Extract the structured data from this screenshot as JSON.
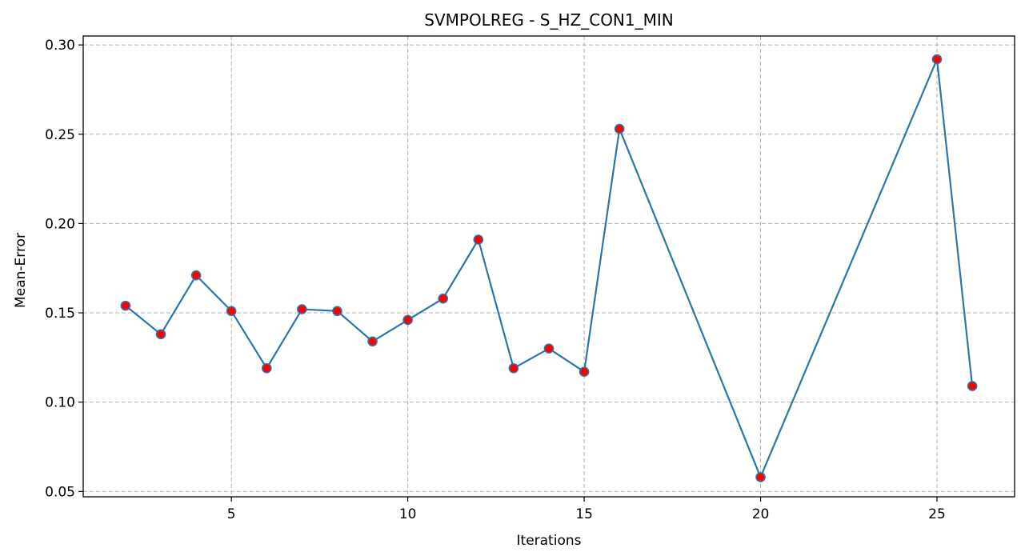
{
  "chart_data": {
    "type": "line",
    "title": "SVMPOLREG - S_HZ_CON1_MIN",
    "xlabel": "Iterations",
    "ylabel": "Mean-Error",
    "xlim": [
      0.8,
      27.2
    ],
    "ylim": [
      0.047,
      0.305
    ],
    "xticks": [
      5,
      10,
      15,
      20,
      25
    ],
    "xtick_labels": [
      "5",
      "10",
      "15",
      "20",
      "25"
    ],
    "yticks": [
      0.05,
      0.1,
      0.15,
      0.2,
      0.25,
      0.3
    ],
    "ytick_labels": [
      "0.05",
      "0.10",
      "0.15",
      "0.20",
      "0.25",
      "0.30"
    ],
    "grid": true,
    "series": [
      {
        "x": [
          2,
          3,
          4,
          5,
          6,
          7,
          8,
          9,
          10,
          11,
          12,
          13,
          14,
          15,
          16,
          20,
          25,
          26
        ],
        "values": [
          0.154,
          0.138,
          0.171,
          0.151,
          0.119,
          0.152,
          0.151,
          0.134,
          0.146,
          0.158,
          0.191,
          0.119,
          0.13,
          0.117,
          0.253,
          0.058,
          0.292,
          0.109
        ],
        "line_color": "#2b76a8",
        "marker_color": "#ff0000",
        "marker_edge_color": "#2b76a8"
      }
    ]
  }
}
